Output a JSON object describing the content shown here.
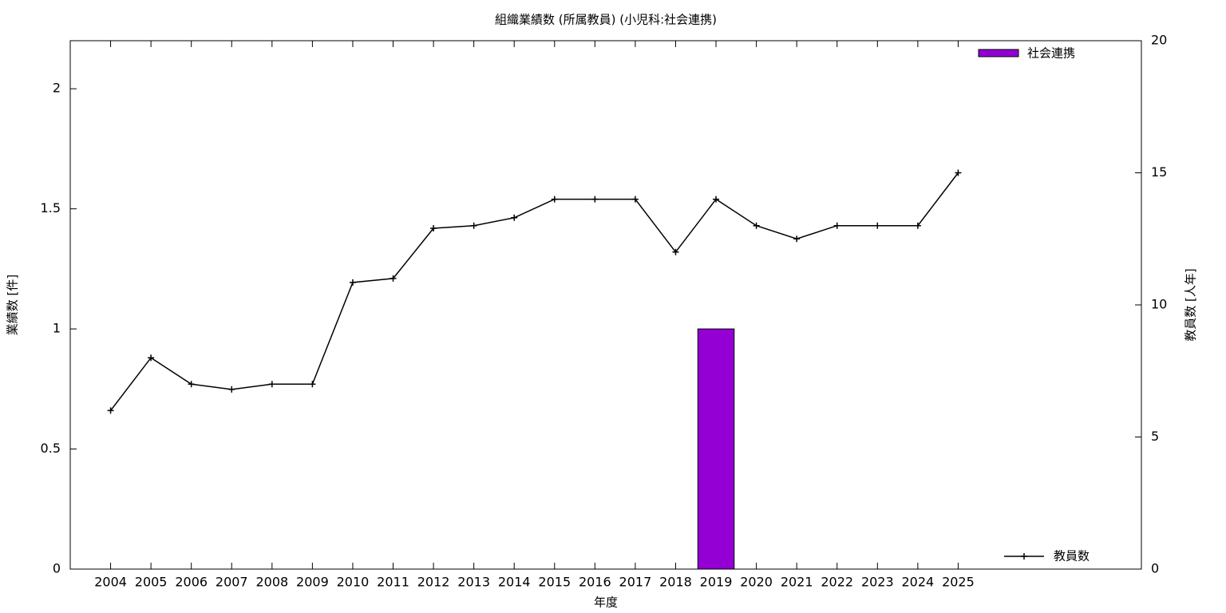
{
  "chart_data": {
    "type": "bar",
    "title": "組織業績数 (所属教員) (小児科:社会連携)",
    "x_label": "年度",
    "y_label": "業績数 [件]",
    "y2_label": "教員数 [人年]",
    "categories": [
      "2004",
      "2005",
      "2006",
      "2007",
      "2008",
      "2009",
      "2010",
      "2011",
      "2012",
      "2013",
      "2014",
      "2015",
      "2016",
      "2017",
      "2018",
      "2019",
      "2020",
      "2021",
      "2022",
      "2023",
      "2024",
      "2025"
    ],
    "series": [
      {
        "name": "社会連携",
        "color": "#9400d3",
        "type": "bar",
        "values": [
          0,
          0,
          0,
          0,
          0,
          0,
          0,
          0,
          0,
          0,
          0,
          0,
          0,
          0,
          0,
          1,
          0,
          0,
          0,
          0,
          0,
          0
        ]
      },
      {
        "name": "教員数",
        "color": "#000000",
        "type": "line",
        "axis": "y2",
        "values": [
          6,
          8,
          7,
          6.8,
          7,
          7,
          10.85,
          11,
          12.9,
          13,
          13.3,
          14,
          14,
          14,
          12,
          14,
          13,
          12.5,
          13,
          13,
          13,
          15
        ]
      }
    ],
    "ylim": [
      0,
      2.2
    ],
    "yticks": [
      0,
      0.5,
      1,
      1.5,
      2
    ],
    "y2lim": [
      0,
      20
    ],
    "y2ticks": [
      0,
      5,
      10,
      15,
      20
    ],
    "grid": false
  }
}
